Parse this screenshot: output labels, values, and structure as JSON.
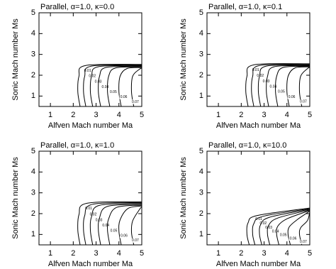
{
  "chart_data": [
    {
      "type": "contour",
      "title": "Parallel,  α=1.0, κ=0.0",
      "xlabel": "Alfven Mach number Ma",
      "ylabel": "Sonic Mach number Ms",
      "xlim": [
        0.5,
        5
      ],
      "ylim": [
        0.5,
        5
      ],
      "xticks": [
        1,
        2,
        3,
        4,
        5
      ],
      "yticks": [
        1,
        2,
        3,
        4,
        5
      ],
      "color": "#000000",
      "contours": [
        {
          "level": 0.01,
          "x": [
            5,
            2.55,
            2.25,
            2.2,
            2.3
          ],
          "y": [
            2.52,
            2.47,
            1.95,
            1.2,
            0.5
          ]
        },
        {
          "level": 0.02,
          "x": [
            5,
            2.8,
            2.5,
            2.45,
            2.55
          ],
          "y": [
            2.49,
            2.44,
            1.95,
            1.2,
            0.5
          ]
        },
        {
          "level": 0.03,
          "x": [
            5,
            3.1,
            2.8,
            2.75,
            2.85
          ],
          "y": [
            2.46,
            2.41,
            1.95,
            1.2,
            0.5
          ]
        },
        {
          "level": 0.04,
          "x": [
            5,
            3.45,
            3.15,
            3.1,
            3.2
          ],
          "y": [
            2.43,
            2.38,
            1.95,
            1.2,
            0.5
          ]
        },
        {
          "level": 0.05,
          "x": [
            5,
            3.85,
            3.55,
            3.5,
            3.6
          ],
          "y": [
            2.4,
            2.35,
            1.95,
            1.2,
            0.5
          ]
        },
        {
          "level": 0.06,
          "x": [
            5,
            4.35,
            4.05,
            4.0,
            4.1
          ],
          "y": [
            2.37,
            2.32,
            1.95,
            1.2,
            0.5
          ]
        },
        {
          "level": 0.07,
          "x": [
            5,
            4.9,
            4.6,
            4.55,
            4.65
          ],
          "y": [
            2.34,
            2.29,
            1.95,
            1.2,
            0.5
          ]
        }
      ]
    },
    {
      "type": "contour",
      "title": "Parallel,  α=1.0, κ=0.1",
      "xlabel": "Alfven Mach number Ma",
      "ylabel": "Sonic Mach number Ms",
      "xlim": [
        0.5,
        5
      ],
      "ylim": [
        0.5,
        5
      ],
      "xticks": [
        1,
        2,
        3,
        4,
        5
      ],
      "yticks": [
        1,
        2,
        3,
        4,
        5
      ],
      "color": "#000000",
      "contours": [
        {
          "level": 0.01,
          "x": [
            5,
            2.55,
            2.25,
            2.2,
            2.3
          ],
          "y": [
            2.55,
            2.5,
            1.95,
            1.2,
            0.5
          ]
        },
        {
          "level": 0.02,
          "x": [
            5,
            2.8,
            2.5,
            2.45,
            2.55
          ],
          "y": [
            2.52,
            2.47,
            1.95,
            1.2,
            0.5
          ]
        },
        {
          "level": 0.03,
          "x": [
            5,
            3.1,
            2.8,
            2.75,
            2.85
          ],
          "y": [
            2.49,
            2.44,
            1.95,
            1.2,
            0.5
          ]
        },
        {
          "level": 0.04,
          "x": [
            5,
            3.45,
            3.15,
            3.1,
            3.2
          ],
          "y": [
            2.46,
            2.41,
            1.95,
            1.2,
            0.5
          ]
        },
        {
          "level": 0.05,
          "x": [
            5,
            3.85,
            3.55,
            3.5,
            3.6
          ],
          "y": [
            2.43,
            2.38,
            1.95,
            1.2,
            0.5
          ]
        },
        {
          "level": 0.06,
          "x": [
            5,
            4.35,
            4.05,
            4.0,
            4.1
          ],
          "y": [
            2.4,
            2.35,
            1.95,
            1.2,
            0.5
          ]
        },
        {
          "level": 0.07,
          "x": [
            5,
            4.9,
            4.6,
            4.55,
            4.65
          ],
          "y": [
            2.37,
            2.32,
            1.95,
            1.2,
            0.5
          ]
        }
      ]
    },
    {
      "type": "contour",
      "title": "Parallel,  α=1.0, κ=1.0",
      "xlabel": "Alfven Mach number Ma",
      "ylabel": "Sonic Mach number Ms",
      "xlim": [
        0.5,
        5
      ],
      "ylim": [
        0.5,
        5
      ],
      "xticks": [
        1,
        2,
        3,
        4,
        5
      ],
      "yticks": [
        1,
        2,
        3,
        4,
        5
      ],
      "color": "#000000",
      "contours": [
        {
          "level": 0.01,
          "x": [
            5,
            2.6,
            2.25,
            2.2,
            2.3
          ],
          "y": [
            2.57,
            2.5,
            1.95,
            1.2,
            0.5
          ]
        },
        {
          "level": 0.02,
          "x": [
            5,
            2.85,
            2.5,
            2.45,
            2.55
          ],
          "y": [
            2.53,
            2.45,
            1.9,
            1.2,
            0.5
          ]
        },
        {
          "level": 0.03,
          "x": [
            5,
            3.15,
            2.8,
            2.75,
            2.85
          ],
          "y": [
            2.49,
            2.4,
            1.85,
            1.2,
            0.5
          ]
        },
        {
          "level": 0.04,
          "x": [
            5,
            3.5,
            3.15,
            3.1,
            3.2
          ],
          "y": [
            2.45,
            2.35,
            1.8,
            1.2,
            0.5
          ]
        },
        {
          "level": 0.05,
          "x": [
            5,
            3.9,
            3.55,
            3.5,
            3.6
          ],
          "y": [
            2.41,
            2.3,
            1.75,
            1.2,
            0.5
          ]
        },
        {
          "level": 0.06,
          "x": [
            5,
            4.4,
            4.05,
            4.0,
            4.1
          ],
          "y": [
            2.37,
            2.25,
            1.7,
            1.15,
            0.5
          ]
        },
        {
          "level": 0.07,
          "x": [
            5,
            4.9,
            4.6,
            4.55,
            4.65
          ],
          "y": [
            2.33,
            2.2,
            1.65,
            1.1,
            0.5
          ]
        }
      ]
    },
    {
      "type": "contour",
      "title": "Parallel,  α=1.0, κ=10.0",
      "xlabel": "Alfven Mach number Ma",
      "ylabel": "Sonic Mach number Ms",
      "xlim": [
        0.5,
        5
      ],
      "ylim": [
        0.5,
        5
      ],
      "xticks": [
        1,
        2,
        3,
        4,
        5
      ],
      "yticks": [
        1,
        2,
        3,
        4,
        5
      ],
      "color": "#000000",
      "contours": [
        {
          "level": 0.01,
          "x": [
            5,
            2.7,
            2.3,
            2.25,
            2.35
          ],
          "y": [
            2.27,
            1.91,
            1.56,
            1.0,
            0.5
          ]
        },
        {
          "level": 0.02,
          "x": [
            5,
            2.95,
            2.55,
            2.5,
            2.6
          ],
          "y": [
            2.24,
            1.87,
            1.52,
            1.0,
            0.5
          ]
        },
        {
          "level": 0.03,
          "x": [
            5,
            3.25,
            2.85,
            2.8,
            2.9
          ],
          "y": [
            2.21,
            1.83,
            1.48,
            1.0,
            0.5
          ]
        },
        {
          "level": 0.04,
          "x": [
            5,
            3.6,
            3.2,
            3.15,
            3.25
          ],
          "y": [
            2.18,
            1.79,
            1.44,
            1.0,
            0.5
          ]
        },
        {
          "level": 0.05,
          "x": [
            5,
            4.0,
            3.6,
            3.55,
            3.65
          ],
          "y": [
            2.15,
            1.75,
            1.4,
            1.0,
            0.5
          ]
        },
        {
          "level": 0.06,
          "x": [
            5,
            4.45,
            4.1,
            4.05,
            4.15
          ],
          "y": [
            2.12,
            1.71,
            1.36,
            1.0,
            0.5
          ]
        },
        {
          "level": 0.07,
          "x": [
            5,
            4.9,
            4.6,
            4.55,
            4.65
          ],
          "y": [
            2.09,
            1.67,
            1.32,
            1.0,
            0.5
          ]
        }
      ]
    }
  ]
}
